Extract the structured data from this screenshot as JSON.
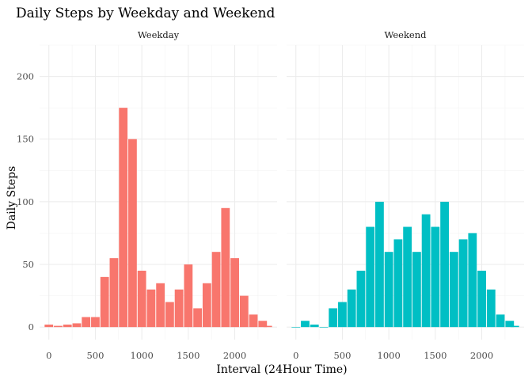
{
  "chart_data": {
    "type": "bar",
    "title": "Daily Steps by Weekday and Weekend",
    "xlabel": "Interval (24Hour Time)",
    "ylabel": "Daily Steps",
    "xlim": [
      -100,
      2455
    ],
    "ylim": [
      -10,
      225
    ],
    "xticks": [
      0,
      500,
      1000,
      1500,
      2000
    ],
    "yticks": [
      0,
      50,
      100,
      150,
      200
    ],
    "grid": true,
    "legend": "none",
    "panels": [
      {
        "label": "Weekday",
        "color": "#F8766D",
        "x": [
          0,
          100,
          200,
          300,
          400,
          500,
          600,
          700,
          800,
          900,
          1000,
          1100,
          1200,
          1300,
          1400,
          1500,
          1600,
          1700,
          1800,
          1900,
          2000,
          2100,
          2200,
          2300,
          2355
        ],
        "values": [
          2,
          1,
          2,
          3,
          8,
          8,
          40,
          55,
          175,
          150,
          45,
          30,
          35,
          20,
          30,
          50,
          15,
          35,
          60,
          95,
          55,
          25,
          10,
          5,
          1
        ]
      },
      {
        "label": "Weekend",
        "color": "#00BFC4",
        "x": [
          0,
          100,
          200,
          300,
          400,
          500,
          600,
          700,
          800,
          900,
          1000,
          1100,
          1200,
          1300,
          1400,
          1500,
          1600,
          1700,
          1800,
          1900,
          2000,
          2100,
          2200,
          2300,
          2355
        ],
        "values": [
          0,
          5,
          2,
          0,
          15,
          20,
          30,
          45,
          80,
          100,
          60,
          70,
          80,
          60,
          90,
          80,
          100,
          60,
          70,
          75,
          45,
          30,
          10,
          5,
          1
        ]
      }
    ]
  }
}
